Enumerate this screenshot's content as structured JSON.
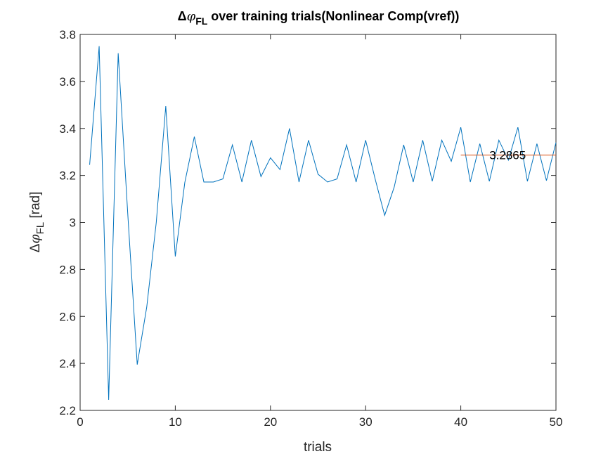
{
  "chart_data": {
    "type": "line",
    "title": {
      "prefix": "Δ",
      "symbol": "φ",
      "subscript": "FL",
      "suffix": " over training trials(Nonlinear Comp(vref))"
    },
    "xlabel": "trials",
    "ylabel": {
      "prefix": "Δ",
      "symbol": "φ",
      "subscript": "FL",
      "suffix": " [rad]"
    },
    "xlim": [
      0,
      50
    ],
    "ylim": [
      2.2,
      3.8
    ],
    "xticks": [
      0,
      10,
      20,
      30,
      40,
      50
    ],
    "xtick_labels": [
      "0",
      "10",
      "20",
      "30",
      "40",
      "50"
    ],
    "yticks": [
      2.2,
      2.4,
      2.6,
      2.8,
      3.0,
      3.2,
      3.4,
      3.6,
      3.8
    ],
    "ytick_labels": [
      "2.2",
      "2.4",
      "2.6",
      "2.8",
      "3",
      "3.2",
      "3.4",
      "3.6",
      "3.8"
    ],
    "grid": false,
    "series": [
      {
        "color": "#0072BD",
        "x": [
          1,
          2,
          3,
          4,
          5,
          6,
          7,
          8,
          9,
          10,
          11,
          12,
          13,
          14,
          15,
          16,
          17,
          18,
          19,
          20,
          21,
          22,
          23,
          24,
          25,
          26,
          27,
          28,
          29,
          30,
          31,
          32,
          33,
          34,
          35,
          36,
          37,
          38,
          39,
          40,
          41,
          42,
          43,
          44,
          45,
          46,
          47,
          48,
          49,
          50
        ],
        "y": [
          3.245,
          3.75,
          2.245,
          3.72,
          3.04,
          2.395,
          2.64,
          3.0,
          3.495,
          2.855,
          3.17,
          3.365,
          3.172,
          3.172,
          3.185,
          3.33,
          3.172,
          3.35,
          3.195,
          3.275,
          3.225,
          3.4,
          3.172,
          3.35,
          3.205,
          3.172,
          3.185,
          3.33,
          3.172,
          3.35,
          3.185,
          3.03,
          3.15,
          3.33,
          3.172,
          3.35,
          3.175,
          3.35,
          3.26,
          3.405,
          3.172,
          3.335,
          3.175,
          3.35,
          3.265,
          3.405,
          3.175,
          3.335,
          3.178,
          3.34
        ]
      },
      {
        "color": "#D95319",
        "x": [
          40,
          50
        ],
        "y": [
          3.2865,
          3.2865
        ]
      }
    ],
    "annotations": [
      {
        "text": "3.2865",
        "x": 43,
        "y": 3.2865
      }
    ]
  }
}
